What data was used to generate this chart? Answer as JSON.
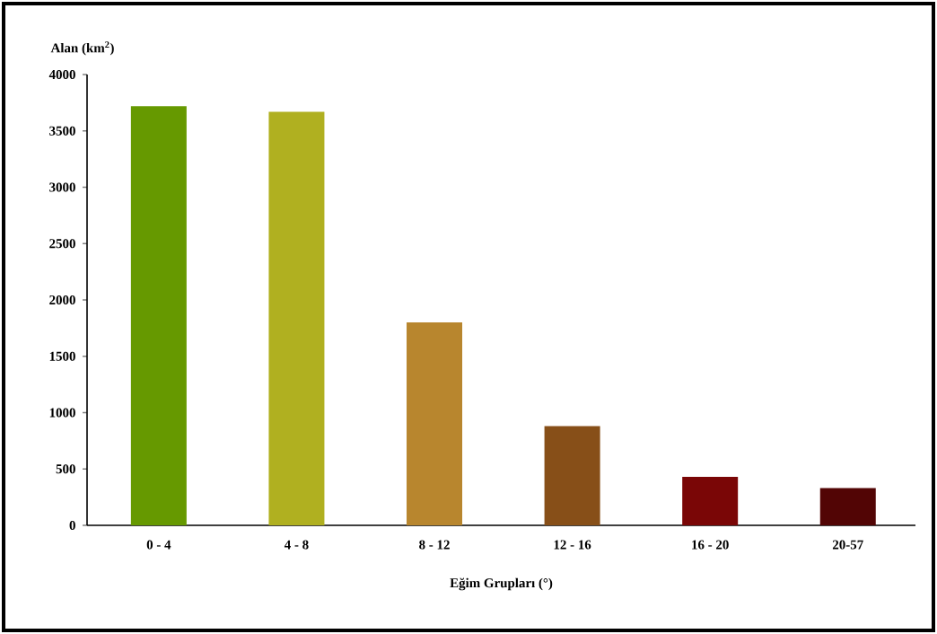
{
  "chart_data": {
    "type": "bar",
    "ylabel": "Alan (km$^{2}$)",
    "xlabel": "Eğim Grupları (°)",
    "categories": [
      "0 - 4",
      "4 - 8",
      "8 - 12",
      "12 - 16",
      "16 - 20",
      "20-57"
    ],
    "values": [
      3720,
      3670,
      1800,
      880,
      430,
      330
    ],
    "colors": [
      "#669900",
      "#b0b020",
      "#b8862e",
      "#874f18",
      "#7a0606",
      "#520505"
    ],
    "ylim": [
      0,
      4000
    ],
    "yticks": [
      0,
      500,
      1000,
      1500,
      2000,
      2500,
      3000,
      3500,
      4000
    ],
    "grid": false
  }
}
